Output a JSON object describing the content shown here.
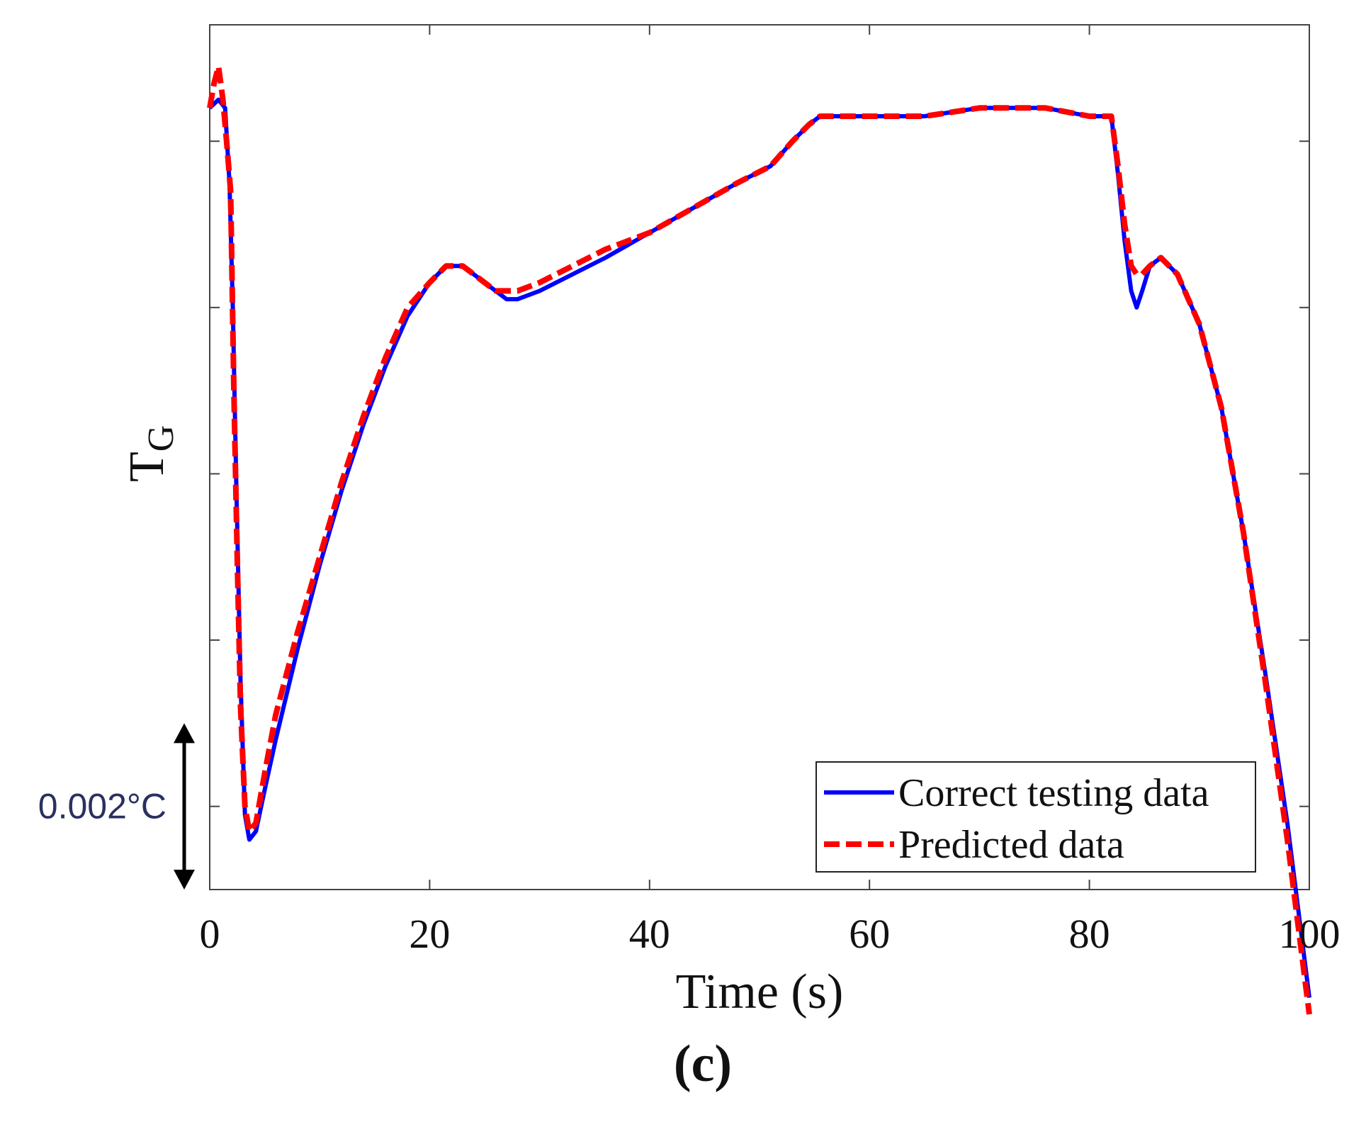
{
  "chart_data": {
    "type": "line",
    "panel_label": "(c)",
    "xlabel": "Time (s)",
    "ylabel": "T",
    "ylabel_subscript": "G",
    "xlim": [
      0,
      100
    ],
    "ylim": [
      -0.001,
      0.0094
    ],
    "x_ticks": [
      0,
      20,
      40,
      60,
      80,
      100
    ],
    "x_tick_labels": [
      "0",
      "20",
      "40",
      "60",
      "80",
      "100"
    ],
    "y_ticks": [
      0,
      0.002,
      0.004,
      0.006,
      0.008
    ],
    "grid": false,
    "legend_position": "bottom-right",
    "scale_bar": {
      "label": "0.002°C",
      "from": -0.001,
      "to": 0.001
    },
    "series": [
      {
        "name": "Correct testing data",
        "color": "#0000ff",
        "style": "solid",
        "x": [
          0,
          0.8,
          1.4,
          1.8,
          2.1,
          2.4,
          2.8,
          3.2,
          3.6,
          4.2,
          5,
          6,
          8,
          10,
          12,
          14,
          16,
          18,
          20,
          21.5,
          23,
          24,
          25,
          26,
          27,
          28,
          30,
          33,
          36,
          40,
          44,
          48,
          51,
          53,
          54.5,
          55.5,
          56.5,
          60,
          65,
          70,
          76,
          80,
          82,
          82.6,
          83.2,
          83.8,
          84.3,
          84.8,
          85.5,
          86.5,
          88,
          90,
          92,
          94,
          96,
          98,
          100
        ],
        "y": [
          0.0084,
          0.0085,
          0.0084,
          0.0075,
          0.006,
          0.004,
          0.0015,
          -0.0001,
          -0.0004,
          -0.0003,
          0.0002,
          0.0008,
          0.0019,
          0.0029,
          0.0038,
          0.0046,
          0.0053,
          0.0059,
          0.0063,
          0.0065,
          0.0065,
          0.0064,
          0.0063,
          0.0062,
          0.0061,
          0.0061,
          0.0062,
          0.0064,
          0.0066,
          0.0069,
          0.0072,
          0.0075,
          0.0077,
          0.008,
          0.0082,
          0.0083,
          0.0083,
          0.0083,
          0.0083,
          0.0084,
          0.0084,
          0.0083,
          0.0083,
          0.0076,
          0.0068,
          0.0062,
          0.006,
          0.0062,
          0.0065,
          0.0066,
          0.0064,
          0.0058,
          0.0048,
          0.0033,
          0.0016,
          -0.0002,
          -0.0023
        ]
      },
      {
        "name": "Predicted data",
        "color": "#ff0000",
        "style": "dashed",
        "x": [
          0,
          0.4,
          0.8,
          1.2,
          1.6,
          1.9,
          2.2,
          2.5,
          2.8,
          3.2,
          3.6,
          4.2,
          5,
          6,
          8,
          10,
          12,
          14,
          16,
          18,
          20,
          21.5,
          23,
          24,
          25,
          26,
          27,
          28,
          30,
          33,
          36,
          40,
          44,
          48,
          51,
          53,
          54.5,
          55.5,
          56.5,
          60,
          65,
          70,
          76,
          80,
          82,
          82.6,
          83.2,
          83.8,
          84.3,
          84.8,
          85.5,
          86.5,
          88,
          90,
          92,
          94,
          96,
          98,
          100
        ],
        "y": [
          0.0084,
          0.0087,
          0.0089,
          0.0085,
          0.0079,
          0.0074,
          0.005,
          0.003,
          0.0012,
          0.0,
          -0.0003,
          -0.0002,
          0.0004,
          0.0011,
          0.0021,
          0.003,
          0.0039,
          0.0047,
          0.0054,
          0.006,
          0.0063,
          0.0065,
          0.0065,
          0.0064,
          0.0063,
          0.0062,
          0.0062,
          0.0062,
          0.0063,
          0.0065,
          0.0067,
          0.0069,
          0.0072,
          0.0075,
          0.0077,
          0.008,
          0.0082,
          0.0083,
          0.0083,
          0.0083,
          0.0083,
          0.0084,
          0.0084,
          0.0083,
          0.0083,
          0.0077,
          0.007,
          0.0065,
          0.0064,
          0.0064,
          0.0065,
          0.0066,
          0.0064,
          0.0058,
          0.0048,
          0.0033,
          0.0015,
          -0.0004,
          -0.0025
        ]
      }
    ]
  }
}
